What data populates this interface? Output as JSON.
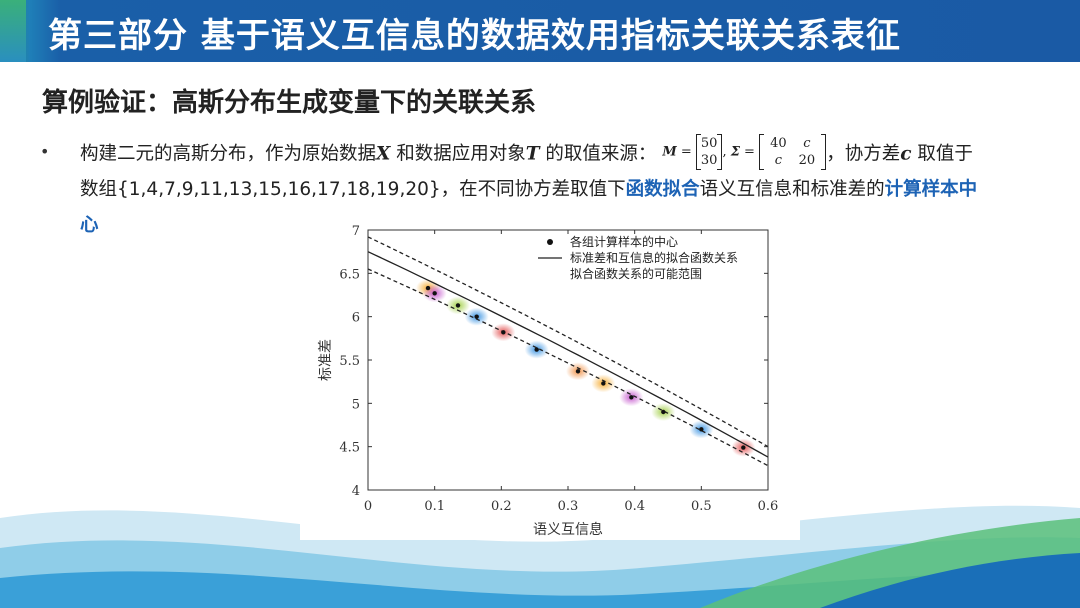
{
  "header": {
    "title": "第三部分  基于语义互信息的数据效用指标关联关系表征"
  },
  "section": {
    "title": "算例验证：高斯分布生成变量下的关联关系"
  },
  "bullet": {
    "dot": "•",
    "t1": "构建二元的高斯分布，作为原始数据",
    "var_x": "X",
    "t2": " 和数据应用对象",
    "var_t": "T",
    "t3": " 的取值来源：",
    "m_label": "M",
    "eq": " = ",
    "m_top": "50",
    "m_bottom": "30",
    "comma": ",",
    "sigma_label": "Σ",
    "s_11": "40",
    "s_12": "c",
    "s_21": "c",
    "s_22": "20",
    "t4": "，协方差",
    "var_c": "c",
    "t5": " 取值于",
    "t6": "数组{1,4,7,9,11,13,15,16,17,18,19,20}，在不同协方差取值下",
    "hl1": "函数拟合",
    "t7": "语义互信息和标准差的",
    "hl2": "计算样本中",
    "hl3": "心"
  },
  "colors": {
    "accent_blue": "#1d63b5",
    "title_bar": "#1a5aa5"
  },
  "chart_data": {
    "type": "scatter",
    "xlabel": "语义互信息",
    "ylabel": "标准差",
    "xlim": [
      0,
      0.6
    ],
    "ylim": [
      4,
      7
    ],
    "xticks": [
      "0",
      "0.1",
      "0.2",
      "0.3",
      "0.4",
      "0.5",
      "0.6"
    ],
    "yticks": [
      "4",
      "4.5",
      "5",
      "5.5",
      "6",
      "6.5",
      "7"
    ],
    "legend": {
      "placement": "top-right",
      "items": [
        "各组计算样本的中心",
        "标准差和互信息的拟合函数关系",
        "拟合函数关系的可能范围"
      ]
    },
    "points": [
      {
        "x": 0.09,
        "y": 6.33,
        "color": "#f5a623"
      },
      {
        "x": 0.1,
        "y": 6.27,
        "color": "#c04ac9"
      },
      {
        "x": 0.135,
        "y": 6.13,
        "color": "#9ccc3a"
      },
      {
        "x": 0.163,
        "y": 6.0,
        "color": "#2b8be0"
      },
      {
        "x": 0.203,
        "y": 5.82,
        "color": "#e04444"
      },
      {
        "x": 0.253,
        "y": 5.62,
        "color": "#2b8be0"
      },
      {
        "x": 0.315,
        "y": 5.37,
        "color": "#f08a3a"
      },
      {
        "x": 0.353,
        "y": 5.23,
        "color": "#f5a623"
      },
      {
        "x": 0.395,
        "y": 5.07,
        "color": "#c04ac9"
      },
      {
        "x": 0.443,
        "y": 4.9,
        "color": "#9ccc3a"
      },
      {
        "x": 0.5,
        "y": 4.7,
        "color": "#2b8be0"
      },
      {
        "x": 0.563,
        "y": 4.49,
        "color": "#e04444"
      }
    ],
    "fit_line": {
      "x": [
        0,
        0.6
      ],
      "y": [
        6.75,
        4.38
      ]
    },
    "upper_band": {
      "x": [
        0,
        0.6
      ],
      "y": [
        6.92,
        4.5
      ]
    },
    "lower_band": {
      "x": [
        0,
        0.6
      ],
      "y": [
        6.55,
        4.28
      ]
    }
  }
}
